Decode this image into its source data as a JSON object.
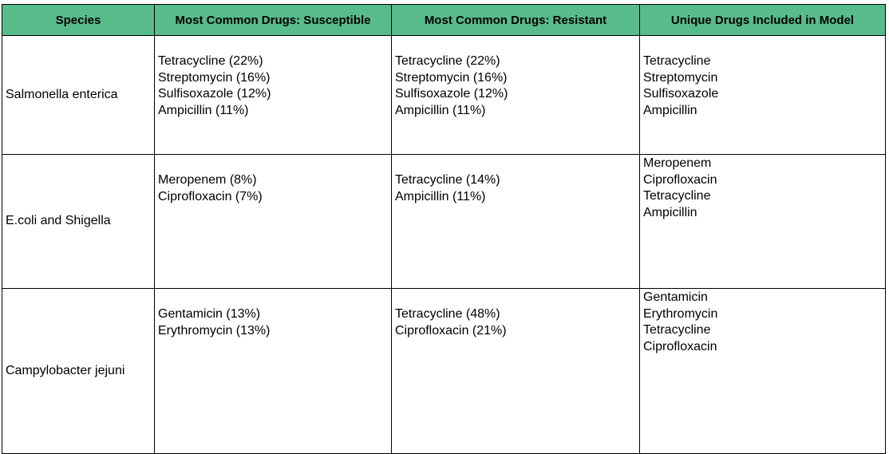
{
  "table": {
    "headers": [
      "Species",
      "Most Common Drugs: Susceptible",
      "Most Common Drugs: Resistant",
      "Unique Drugs Included in Model"
    ],
    "rows": [
      {
        "species": "Salmonella enterica",
        "susceptible": [
          "Tetracycline (22%)",
          "Streptomycin (16%)",
          "Sulfisoxazole (12%)",
          "Ampicillin (11%)"
        ],
        "resistant": [
          "Tetracycline (22%)",
          "Streptomycin (16%)",
          "Sulfisoxazole (12%)",
          "Ampicillin (11%)"
        ],
        "unique": [
          "Tetracycline",
          "Streptomycin",
          "Sulfisoxazole",
          "Ampicillin"
        ]
      },
      {
        "species": "E.coli and Shigella",
        "susceptible": [
          "Meropenem (8%)",
          "Ciprofloxacin (7%)"
        ],
        "resistant": [
          "Tetracycline (14%)",
          "Ampicillin (11%)"
        ],
        "unique": [
          "Meropenem",
          "Ciprofloxacin",
          "Tetracycline",
          "Ampicillin"
        ]
      },
      {
        "species": "Campylobacter jejuni",
        "susceptible": [
          "Gentamicin (13%)",
          "Erythromycin (13%)"
        ],
        "resistant": [
          "Tetracycline (48%)",
          "Ciprofloxacin (21%)"
        ],
        "unique": [
          "Gentamicin",
          "Erythromycin",
          "Tetracycline",
          "Ciprofloxacin"
        ]
      }
    ]
  },
  "colors": {
    "header_bg": "#57bb8a",
    "border": "#000000"
  }
}
